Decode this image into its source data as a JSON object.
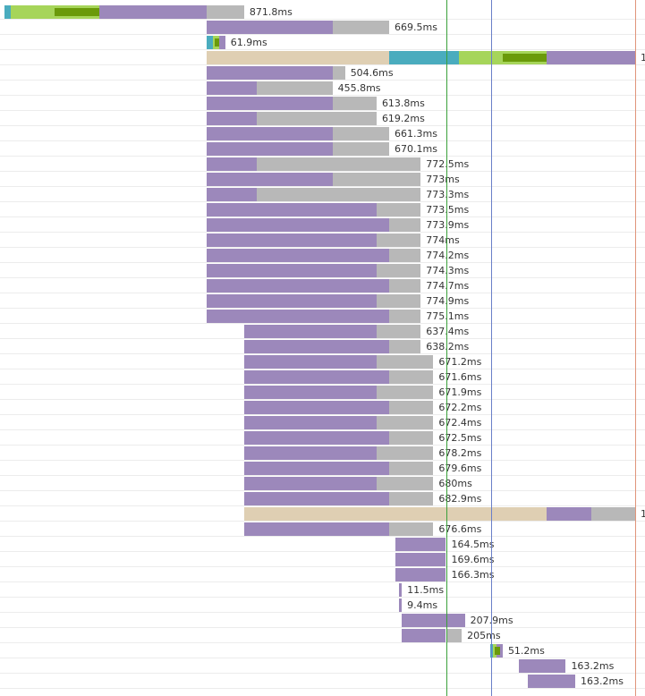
{
  "colors": {
    "wait": "#9c88bb",
    "receive": "#b8b8b8",
    "dns": "#4aacbe",
    "connect": "#a6d55a",
    "ssl": "#6a9a0a",
    "blocked": "#dfcfb3",
    "dom_loaded_line": "#3aa03a",
    "onload_line": "#6a7fc8",
    "end_line": "#e0957a"
  },
  "rows": [
    {
      "label": "871.8ms",
      "segments": [
        [
          "dns",
          0,
          1
        ],
        [
          "connect",
          1,
          15
        ],
        [
          "wait",
          15,
          32
        ],
        [
          "receive",
          32,
          38
        ]
      ],
      "ssl": [
        8,
        15
      ]
    },
    {
      "label": "669.5ms",
      "segments": [
        [
          "wait",
          32,
          52
        ],
        [
          "receive",
          52,
          61
        ]
      ]
    },
    {
      "label": "61.9ms",
      "segments": [
        [
          "dns",
          32,
          33
        ],
        [
          "connect",
          33,
          34
        ],
        [
          "wait",
          34,
          35
        ]
      ],
      "ssl": [
        33.3,
        34
      ]
    },
    {
      "label": "1",
      "segments": [
        [
          "blocked",
          32,
          61
        ],
        [
          "dns",
          61,
          72
        ],
        [
          "connect",
          72,
          86
        ],
        [
          "wait",
          86,
          100
        ]
      ],
      "ssl": [
        79,
        86
      ]
    },
    {
      "label": "504.6ms",
      "segments": [
        [
          "wait",
          32,
          52
        ],
        [
          "receive",
          52,
          54
        ]
      ]
    },
    {
      "label": "455.8ms",
      "segments": [
        [
          "wait",
          32,
          40
        ],
        [
          "receive",
          40,
          52
        ]
      ]
    },
    {
      "label": "613.8ms",
      "segments": [
        [
          "wait",
          32,
          52
        ],
        [
          "receive",
          52,
          59
        ]
      ]
    },
    {
      "label": "619.2ms",
      "segments": [
        [
          "wait",
          32,
          40
        ],
        [
          "receive",
          40,
          59
        ]
      ]
    },
    {
      "label": "661.3ms",
      "segments": [
        [
          "wait",
          32,
          52
        ],
        [
          "receive",
          52,
          61
        ]
      ]
    },
    {
      "label": "670.1ms",
      "segments": [
        [
          "wait",
          32,
          52
        ],
        [
          "receive",
          52,
          61
        ]
      ]
    },
    {
      "label": "772.5ms",
      "segments": [
        [
          "wait",
          32,
          40
        ],
        [
          "receive",
          40,
          66
        ]
      ]
    },
    {
      "label": "773ms",
      "segments": [
        [
          "wait",
          32,
          52
        ],
        [
          "receive",
          52,
          66
        ]
      ]
    },
    {
      "label": "773.3ms",
      "segments": [
        [
          "wait",
          32,
          40
        ],
        [
          "receive",
          40,
          66
        ]
      ]
    },
    {
      "label": "773.5ms",
      "segments": [
        [
          "wait",
          32,
          59
        ],
        [
          "receive",
          59,
          66
        ]
      ]
    },
    {
      "label": "773.9ms",
      "segments": [
        [
          "wait",
          32,
          61
        ],
        [
          "receive",
          61,
          66
        ]
      ]
    },
    {
      "label": "774ms",
      "segments": [
        [
          "wait",
          32,
          59
        ],
        [
          "receive",
          59,
          66
        ]
      ]
    },
    {
      "label": "774.2ms",
      "segments": [
        [
          "wait",
          32,
          61
        ],
        [
          "receive",
          61,
          66
        ]
      ]
    },
    {
      "label": "774.3ms",
      "segments": [
        [
          "wait",
          32,
          59
        ],
        [
          "receive",
          59,
          66
        ]
      ]
    },
    {
      "label": "774.7ms",
      "segments": [
        [
          "wait",
          32,
          61
        ],
        [
          "receive",
          61,
          66
        ]
      ]
    },
    {
      "label": "774.9ms",
      "segments": [
        [
          "wait",
          32,
          59
        ],
        [
          "receive",
          59,
          66
        ]
      ]
    },
    {
      "label": "775.1ms",
      "segments": [
        [
          "wait",
          32,
          61
        ],
        [
          "receive",
          61,
          66
        ]
      ]
    },
    {
      "label": "637.4ms",
      "segments": [
        [
          "wait",
          38,
          59
        ],
        [
          "receive",
          59,
          66
        ]
      ]
    },
    {
      "label": "638.2ms",
      "segments": [
        [
          "wait",
          38,
          61
        ],
        [
          "receive",
          61,
          66
        ]
      ]
    },
    {
      "label": "671.2ms",
      "segments": [
        [
          "wait",
          38,
          59
        ],
        [
          "receive",
          59,
          68
        ]
      ]
    },
    {
      "label": "671.6ms",
      "segments": [
        [
          "wait",
          38,
          61
        ],
        [
          "receive",
          61,
          68
        ]
      ]
    },
    {
      "label": "671.9ms",
      "segments": [
        [
          "wait",
          38,
          59
        ],
        [
          "receive",
          59,
          68
        ]
      ]
    },
    {
      "label": "672.2ms",
      "segments": [
        [
          "wait",
          38,
          61
        ],
        [
          "receive",
          61,
          68
        ]
      ]
    },
    {
      "label": "672.4ms",
      "segments": [
        [
          "wait",
          38,
          59
        ],
        [
          "receive",
          59,
          68
        ]
      ]
    },
    {
      "label": "672.5ms",
      "segments": [
        [
          "wait",
          38,
          61
        ],
        [
          "receive",
          61,
          68
        ]
      ]
    },
    {
      "label": "678.2ms",
      "segments": [
        [
          "wait",
          38,
          59
        ],
        [
          "receive",
          59,
          68
        ]
      ]
    },
    {
      "label": "679.6ms",
      "segments": [
        [
          "wait",
          38,
          61
        ],
        [
          "receive",
          61,
          68
        ]
      ]
    },
    {
      "label": "680ms",
      "segments": [
        [
          "wait",
          38,
          59
        ],
        [
          "receive",
          59,
          68
        ]
      ]
    },
    {
      "label": "682.9ms",
      "segments": [
        [
          "wait",
          38,
          61
        ],
        [
          "receive",
          61,
          68
        ]
      ]
    },
    {
      "label": "1",
      "segments": [
        [
          "blocked",
          38,
          86
        ],
        [
          "wait",
          86,
          93
        ],
        [
          "receive",
          93,
          100
        ]
      ]
    },
    {
      "label": "676.6ms",
      "segments": [
        [
          "wait",
          38,
          61
        ],
        [
          "receive",
          61,
          68
        ]
      ]
    },
    {
      "label": "164.5ms",
      "segments": [
        [
          "wait",
          62,
          70
        ]
      ]
    },
    {
      "label": "169.6ms",
      "segments": [
        [
          "wait",
          62,
          70
        ]
      ]
    },
    {
      "label": "166.3ms",
      "segments": [
        [
          "wait",
          62,
          70
        ]
      ]
    },
    {
      "label": "11.5ms",
      "segments": [
        [
          "wait",
          62.5,
          63
        ]
      ]
    },
    {
      "label": "9.4ms",
      "segments": [
        [
          "wait",
          62.5,
          63
        ]
      ]
    },
    {
      "label": "207.9ms",
      "segments": [
        [
          "wait",
          63,
          73
        ]
      ]
    },
    {
      "label": "205ms",
      "segments": [
        [
          "wait",
          63,
          70
        ],
        [
          "receive",
          70,
          72.5
        ]
      ]
    },
    {
      "label": "51.2ms",
      "segments": [
        [
          "dns",
          77,
          77.5
        ],
        [
          "connect",
          77.5,
          78
        ],
        [
          "wait",
          78,
          79
        ]
      ],
      "ssl": [
        77.8,
        78.6
      ]
    },
    {
      "label": "163.2ms",
      "segments": [
        [
          "wait",
          81.5,
          89
        ]
      ]
    },
    {
      "label": "163.2ms",
      "segments": [
        [
          "wait",
          83,
          90.5
        ]
      ]
    }
  ],
  "lines": [
    {
      "kind": "dom_loaded_line",
      "pos": 70.1
    },
    {
      "kind": "onload_line",
      "pos": 77.2
    },
    {
      "kind": "end_line",
      "pos": 100
    }
  ]
}
